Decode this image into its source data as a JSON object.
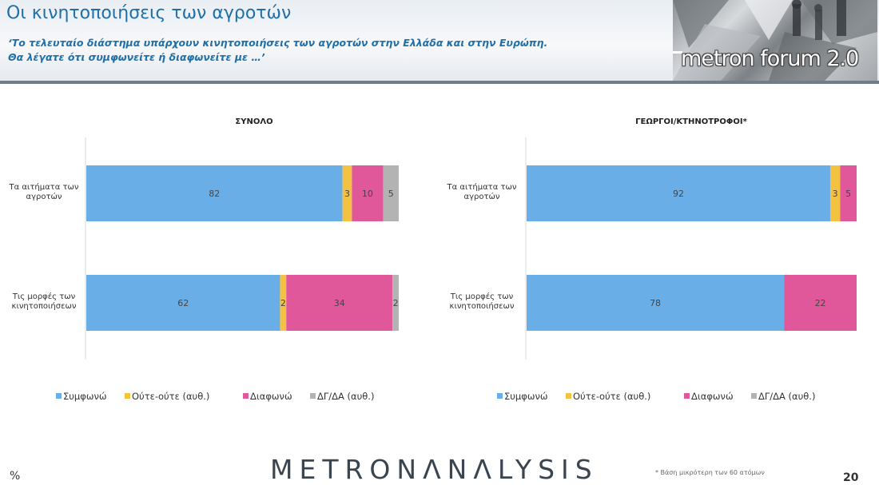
{
  "header": {
    "title": "Οι κινητοποιήσεις των αγροτών",
    "subtitle_line1": "‘Το τελευταίο διάστημα υπάρχουν κινητοποιήσεις των αγροτών στην Ελλάδα και στην Ευρώπη.",
    "subtitle_line2": "Θα λέγατε ότι συμφωνείτε ή διαφωνείτε με …’",
    "logo_text": "metron forum 2.0"
  },
  "footer": {
    "unit": "%",
    "brand": "METRONΛNΛLYSIS",
    "footnote": "* Βάση μικρότερη των 60 ατόμων",
    "page": "20"
  },
  "colors": {
    "agree": "#6aaee8",
    "neutral": "#f3c243",
    "disagree": "#e0589a",
    "dk": "#b3b3b3"
  },
  "chart_data": [
    {
      "type": "bar",
      "orientation": "horizontal",
      "stacked": true,
      "title": "ΣΥΝΟΛΟ",
      "categories": [
        "Τα αιτήματα των αγροτών",
        "Τις μορφές των κινητοποιήσεων"
      ],
      "series": [
        {
          "name": "Συμφωνώ",
          "values": [
            82,
            62
          ]
        },
        {
          "name": "Ούτε-ούτε (αυθ.)",
          "values": [
            3,
            2
          ]
        },
        {
          "name": "Διαφωνώ",
          "values": [
            10,
            34
          ]
        },
        {
          "name": "ΔΓ/ΔΑ (αυθ.)",
          "values": [
            5,
            2
          ]
        }
      ],
      "xlim": [
        0,
        100
      ],
      "legend": "bottom"
    },
    {
      "type": "bar",
      "orientation": "horizontal",
      "stacked": true,
      "title": "ΓΕΩΡΓΟΙ/ΚΤΗΝΟΤΡΟΦΟΙ*",
      "categories": [
        "Τα αιτήματα των αγροτών",
        "Τις μορφές των κινητοποιήσεων"
      ],
      "series": [
        {
          "name": "Συμφωνώ",
          "values": [
            92,
            78
          ]
        },
        {
          "name": "Ούτε-ούτε (αυθ.)",
          "values": [
            3,
            0
          ]
        },
        {
          "name": "Διαφωνώ",
          "values": [
            5,
            22
          ]
        },
        {
          "name": "ΔΓ/ΔΑ (αυθ.)",
          "values": [
            0,
            0
          ]
        }
      ],
      "xlim": [
        0,
        100
      ],
      "legend": "bottom"
    }
  ]
}
